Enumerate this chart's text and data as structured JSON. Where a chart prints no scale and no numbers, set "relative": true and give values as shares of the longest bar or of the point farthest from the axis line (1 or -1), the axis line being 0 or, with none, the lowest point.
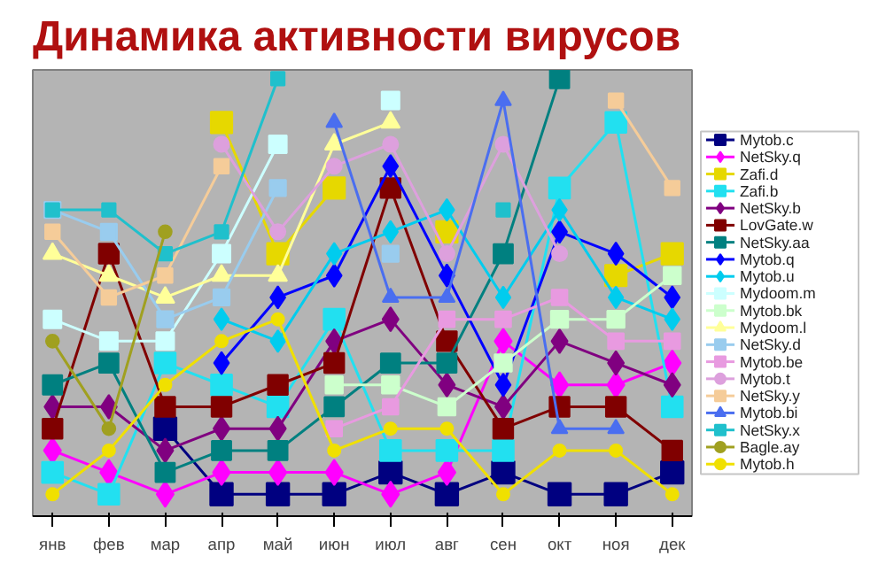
{
  "chart_data": {
    "type": "line",
    "title": "Динамика активности вирусов",
    "relative": true,
    "legend": "right",
    "line_style": "solid",
    "categories": [
      "янв",
      "фев",
      "мар",
      "апр",
      "май",
      "июн",
      "июл",
      "авг",
      "сен",
      "окт",
      "ноя",
      "дек"
    ],
    "series": [
      {
        "name": "Mytob.c",
        "color": "#000080",
        "marker": "square",
        "values": [
          null,
          null,
          0.2,
          0.05,
          0.05,
          0.05,
          0.1,
          0.05,
          0.1,
          0.05,
          0.05,
          0.1
        ]
      },
      {
        "name": "NetSky.q",
        "color": "#ff00ff",
        "marker": "diamond",
        "values": [
          0.15,
          0.1,
          0.05,
          0.1,
          0.1,
          0.1,
          0.05,
          0.1,
          0.4,
          0.3,
          0.3,
          0.35
        ]
      },
      {
        "name": "Zafi.d",
        "color": "#e6d800",
        "marker": "square",
        "values": [
          null,
          null,
          null,
          0.9,
          0.6,
          0.75,
          null,
          0.65,
          null,
          null,
          0.55,
          0.6
        ]
      },
      {
        "name": "Zafi.b",
        "color": "#22e0f0",
        "marker": "square",
        "values": [
          0.1,
          0.05,
          0.35,
          0.3,
          0.25,
          0.45,
          0.15,
          0.15,
          0.15,
          0.75,
          0.9,
          0.25
        ]
      },
      {
        "name": "NetSky.b",
        "color": "#800080",
        "marker": "diamond",
        "values": [
          0.25,
          0.25,
          0.15,
          0.2,
          0.2,
          0.4,
          0.45,
          0.3,
          0.25,
          0.4,
          0.35,
          0.3
        ]
      },
      {
        "name": "LovGate.w",
        "color": "#800000",
        "marker": "square",
        "values": [
          0.2,
          0.6,
          0.25,
          0.25,
          0.3,
          0.35,
          0.75,
          0.4,
          0.2,
          0.25,
          0.25,
          0.15
        ]
      },
      {
        "name": "NetSky.aa",
        "color": "#008080",
        "marker": "square",
        "values": [
          0.3,
          0.35,
          0.1,
          0.15,
          0.15,
          0.25,
          0.35,
          0.35,
          0.6,
          1.0,
          null,
          null
        ]
      },
      {
        "name": "Mytob.q",
        "color": "#0000ff",
        "marker": "diamond",
        "values": [
          null,
          null,
          null,
          0.35,
          0.5,
          0.55,
          0.8,
          0.55,
          0.3,
          0.65,
          0.6,
          0.5
        ]
      },
      {
        "name": "Mytob.u",
        "color": "#00ccee",
        "marker": "diamond",
        "values": [
          null,
          null,
          null,
          0.45,
          0.4,
          0.6,
          0.65,
          0.7,
          0.5,
          0.7,
          0.5,
          0.45
        ]
      },
      {
        "name": "Mydoom.m",
        "color": "#ccffff",
        "marker": "square",
        "values": [
          0.45,
          0.4,
          0.4,
          0.6,
          0.85,
          null,
          0.95,
          null,
          null,
          null,
          null,
          null
        ]
      },
      {
        "name": "Mytob.bk",
        "color": "#ccffcc",
        "marker": "square",
        "values": [
          null,
          null,
          null,
          null,
          null,
          0.3,
          0.3,
          0.25,
          0.35,
          0.45,
          0.45,
          0.55
        ]
      },
      {
        "name": "Mydoom.l",
        "color": "#ffff99",
        "marker": "triangle",
        "values": [
          0.6,
          0.55,
          0.5,
          0.55,
          0.55,
          0.85,
          0.9,
          null,
          null,
          null,
          null,
          null
        ]
      },
      {
        "name": "NetSky.d",
        "color": "#99ccee",
        "marker": "square",
        "values": [
          0.7,
          0.65,
          0.45,
          0.5,
          0.75,
          null,
          0.6,
          null,
          null,
          null,
          null,
          null
        ]
      },
      {
        "name": "Mytob.be",
        "color": "#e89ae0",
        "marker": "square",
        "values": [
          null,
          null,
          null,
          null,
          null,
          0.2,
          0.25,
          0.45,
          0.45,
          0.5,
          0.4,
          0.4
        ]
      },
      {
        "name": "Mytob.t",
        "color": "#dda0dd",
        "marker": "circle",
        "values": [
          null,
          null,
          null,
          0.85,
          0.65,
          0.8,
          0.85,
          0.6,
          0.85,
          0.6,
          null,
          null
        ]
      },
      {
        "name": "NetSky.y",
        "color": "#f5cc99",
        "marker": "square",
        "values": [
          0.65,
          0.5,
          0.55,
          0.8,
          null,
          null,
          null,
          null,
          null,
          null,
          0.95,
          0.75
        ]
      },
      {
        "name": "Mytob.bi",
        "color": "#4a6ef0",
        "marker": "triangle",
        "values": [
          null,
          null,
          null,
          null,
          null,
          0.9,
          0.5,
          0.5,
          0.95,
          0.2,
          0.2,
          null
        ]
      },
      {
        "name": "NetSky.x",
        "color": "#20c0cc",
        "marker": "square",
        "values": [
          0.7,
          0.7,
          0.6,
          0.65,
          1.0,
          null,
          null,
          null,
          0.7,
          null,
          null,
          null
        ]
      },
      {
        "name": "Bagle.ay",
        "color": "#a0a020",
        "marker": "circle",
        "values": [
          0.4,
          0.2,
          0.65,
          null,
          null,
          null,
          null,
          null,
          null,
          null,
          null,
          null
        ]
      },
      {
        "name": "Mytob.h",
        "color": "#f0e000",
        "marker": "circle",
        "values": [
          0.05,
          0.15,
          0.3,
          0.4,
          0.45,
          0.15,
          0.2,
          0.2,
          0.05,
          0.15,
          0.15,
          0.05
        ]
      }
    ]
  }
}
